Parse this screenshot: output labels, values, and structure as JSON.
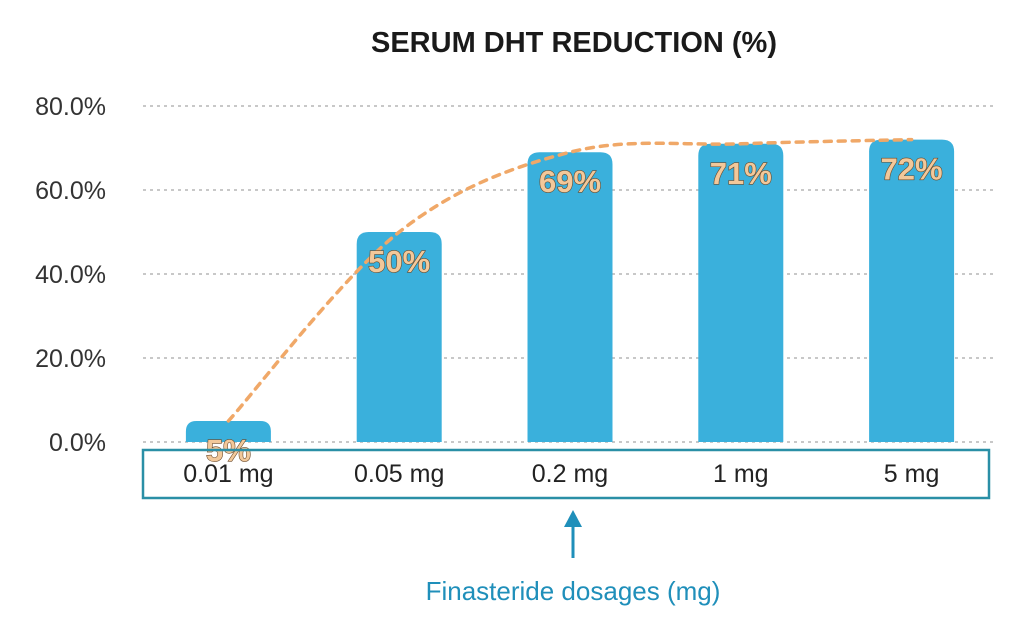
{
  "chart_data": {
    "type": "bar",
    "title": "SERUM DHT REDUCTION  (%)",
    "xlabel": "Finasteride dosages (mg)",
    "categories": [
      "0.01 mg",
      "0.05 mg",
      "0.2 mg",
      "1 mg",
      "5 mg"
    ],
    "values": [
      5,
      50,
      69,
      71,
      72
    ],
    "data_labels": [
      "5%",
      "50%",
      "69%",
      "71%",
      "72%"
    ],
    "yticks": [
      "0.0%",
      "20.0%",
      "40.0%",
      "60.0%",
      "80.0%"
    ],
    "ylim": [
      0,
      80
    ],
    "grid": true,
    "trendline": "dashed curve through bar tops",
    "colors": {
      "bar": "#3ab0dc",
      "trendline": "#f0a868",
      "data_label": "#f2c89a",
      "category_box_border": "#2a8fa6",
      "xlabel": "#1f8fba",
      "arrow": "#1f8fba",
      "grid": "#b5b5b5"
    }
  }
}
